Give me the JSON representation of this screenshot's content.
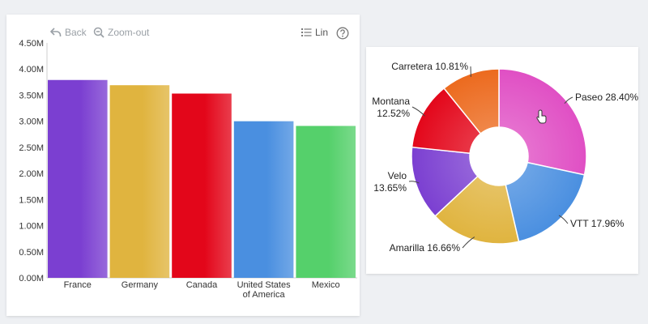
{
  "toolbar": {
    "back_label": "Back",
    "zoom_out_label": "Zoom-out",
    "scale_label": "Lin"
  },
  "chart_data": [
    {
      "type": "bar",
      "categories": [
        "France",
        "Germany",
        "Canada",
        "United States of America",
        "Mexico"
      ],
      "category_lines": [
        [
          "France"
        ],
        [
          "Germany"
        ],
        [
          "Canada"
        ],
        [
          "United States",
          "of America"
        ],
        [
          "Mexico"
        ]
      ],
      "values": [
        3790000,
        3690000,
        3530000,
        3000000,
        2910000
      ],
      "colors": [
        "#7b3fd1",
        "#e0b43f",
        "#e3061a",
        "#4a8fe0",
        "#55d06b"
      ],
      "y_ticks": [
        "0.00M",
        "0.50M",
        "1.00M",
        "1.50M",
        "2.00M",
        "2.50M",
        "3.00M",
        "3.50M",
        "4.00M",
        "4.50M"
      ],
      "ylim": [
        0,
        4500000
      ],
      "grid": false
    },
    {
      "type": "pie",
      "donut": true,
      "slices": [
        {
          "name": "Paseo",
          "percent": 28.4,
          "label": "Paseo 28.40%",
          "color": "#e04fc4"
        },
        {
          "name": "VTT",
          "percent": 17.96,
          "label": "VTT 17.96%",
          "color": "#4a8fe0"
        },
        {
          "name": "Amarilla",
          "percent": 16.66,
          "label": "Amarilla 16.66%",
          "color": "#e0b43f"
        },
        {
          "name": "Velo",
          "percent": 13.65,
          "label": "Velo\n13.65%",
          "color": "#7b3fd1"
        },
        {
          "name": "Montana",
          "percent": 12.52,
          "label": "Montana\n12.52%",
          "color": "#e3061a"
        },
        {
          "name": "Carretera",
          "percent": 10.81,
          "label": "Carretera 10.81%",
          "color": "#ec6a1e"
        }
      ]
    }
  ]
}
